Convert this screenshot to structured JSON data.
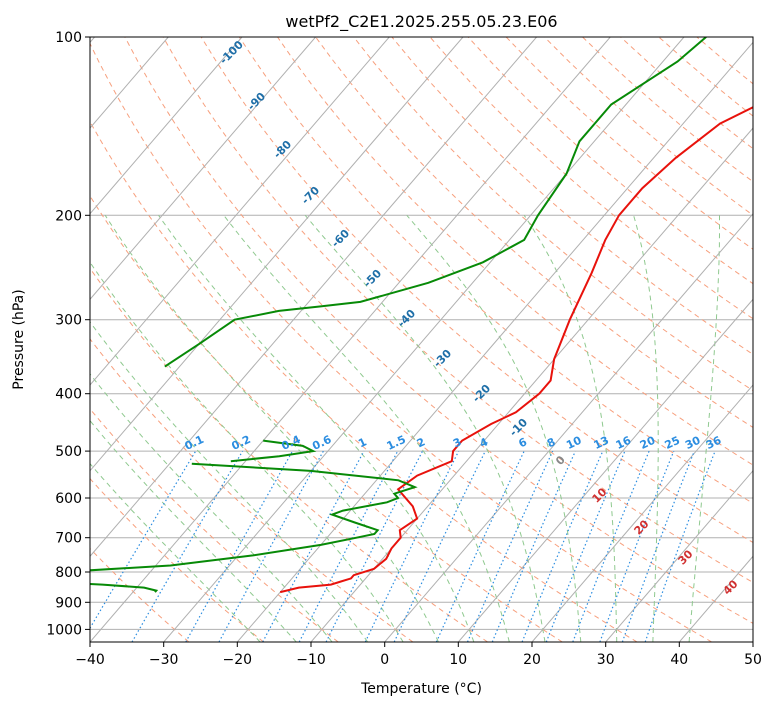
{
  "chart_data": {
    "type": "line",
    "title": "wetPf2_C2E1.2025.255.05.23.E06",
    "xlabel": "Temperature (°C)",
    "ylabel": "Pressure (hPa)",
    "xlim": [
      -40,
      50
    ],
    "ylim": [
      1050,
      100
    ],
    "y_scale": "log",
    "x_ticks": [
      -40,
      -30,
      -20,
      -10,
      0,
      10,
      20,
      30,
      40,
      50
    ],
    "y_ticks": [
      100,
      200,
      300,
      400,
      500,
      600,
      700,
      800,
      900,
      1000
    ],
    "x_tick_labels": [
      "−40",
      "−30",
      "−20",
      "−10",
      "0",
      "10",
      "20",
      "30",
      "40",
      "50"
    ],
    "y_tick_labels": [
      "100",
      "200",
      "300",
      "400",
      "500",
      "600",
      "700",
      "800",
      "900",
      "1000"
    ],
    "grid": true,
    "isotherm_labels": [
      "-100",
      "-90",
      "-80",
      "-70",
      "-60",
      "-50",
      "-40",
      "-30",
      "-20",
      "-10",
      "0",
      "10",
      "20",
      "30",
      "40"
    ],
    "mixing_ratio_labels": [
      "0.1",
      "0.2",
      "0.4",
      "0.6",
      "1",
      "1.5",
      "2",
      "3",
      "4",
      "6",
      "8",
      "10",
      "13",
      "16",
      "20",
      "25",
      "30",
      "36"
    ],
    "colors": {
      "temperature": "#e8120c",
      "dewpoint": "#078a07",
      "isotherm": "#b0b0b0",
      "dry_adiabat": "#f7a07e",
      "moist_adiabat": "#8fc98f",
      "mixing_ratio": "#2b8de0",
      "isotherm_label": "#1f6fa8",
      "high_label": "#d03030"
    },
    "series": [
      {
        "key": "temperature",
        "p": [
          100,
          110,
          120,
          125,
          130,
          140,
          160,
          180,
          200,
          220,
          250,
          300,
          350,
          380,
          400,
          430,
          450,
          480,
          500,
          520,
          550,
          580,
          620,
          650,
          680,
          700,
          730,
          760,
          790,
          810,
          820,
          830,
          840,
          850,
          865
        ],
        "t": [
          -7,
          -9,
          -10,
          -10,
          -12,
          -15,
          -17,
          -18,
          -18,
          -17,
          -15,
          -12.5,
          -10,
          -8,
          -8,
          -9,
          -11,
          -13,
          -13,
          -12,
          -15,
          -16,
          -12,
          -10,
          -11,
          -10,
          -10,
          -9.5,
          -10,
          -12,
          -12,
          -13,
          -14,
          -18,
          -20
        ]
      },
      {
        "key": "dewpoint",
        "p": [
          100,
          110,
          130,
          150,
          170,
          200,
          220,
          240,
          260,
          280,
          285,
          290,
          300,
          330,
          360
        ],
        "t": [
          -27,
          -28,
          -32,
          -32,
          -30,
          -29,
          -28,
          -31,
          -36,
          -43,
          -48,
          -53,
          -58,
          -60,
          -62
        ]
      },
      {
        "key": "dewpoint",
        "p": [
          480,
          490,
          500,
          510,
          520
        ],
        "t": [
          -40,
          -34,
          -32,
          -36,
          -42
        ]
      },
      {
        "key": "dewpoint",
        "p": [
          525,
          540,
          560,
          575,
          590,
          600,
          610,
          630,
          640,
          660,
          680,
          690,
          700,
          720,
          750,
          780,
          800,
          810
        ],
        "t": [
          -47,
          -30,
          -17,
          -14,
          -16,
          -15,
          -16,
          -21,
          -22,
          -18,
          -14,
          -14,
          -16,
          -20,
          -28,
          -38,
          -52,
          -60
        ]
      },
      {
        "key": "dewpoint",
        "p": [
          835,
          840,
          850,
          860,
          865
        ],
        "t": [
          -50,
          -45,
          -39,
          -37,
          -37
        ]
      }
    ]
  }
}
